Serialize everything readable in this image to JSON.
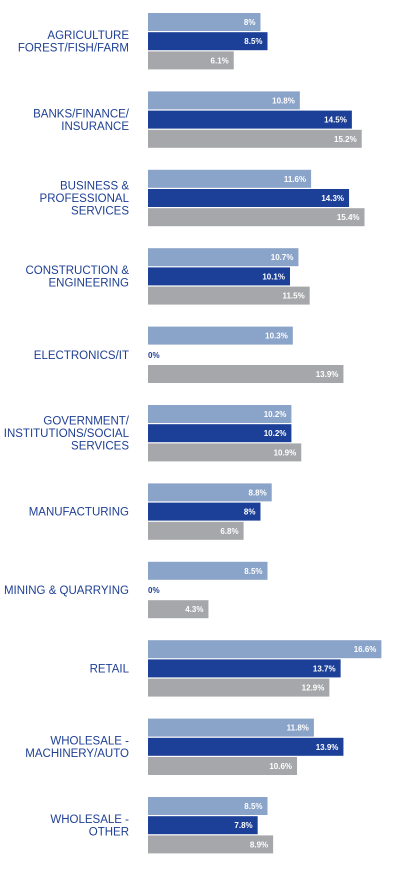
{
  "chart_data": {
    "type": "bar",
    "orientation": "horizontal",
    "grid": false,
    "legend": "none",
    "colors": [
      "#8aa3c8",
      "#1c3f97",
      "#a6a7aa"
    ],
    "categories": [
      [
        "AGRICULTURE",
        "FOREST/FISH/FARM"
      ],
      [
        "BANKS/FINANCE/",
        "INSURANCE"
      ],
      [
        "BUSINESS &",
        "PROFESSIONAL",
        "SERVICES"
      ],
      [
        "CONSTRUCTION &",
        "ENGINEERING"
      ],
      [
        "ELECTRONICS/IT"
      ],
      [
        "GOVERNMENT/",
        "INSTITUTIONS/SOCIAL",
        "SERVICES"
      ],
      [
        "MANUFACTURING"
      ],
      [
        "MINING & QUARRYING"
      ],
      [
        "RETAIL"
      ],
      [
        "WHOLESALE -",
        "MACHINERY/AUTO"
      ],
      [
        "WHOLESALE -",
        "OTHER"
      ]
    ],
    "series": [
      {
        "values": [
          8,
          10.8,
          11.6,
          10.7,
          10.3,
          10.2,
          8.8,
          8.5,
          16.6,
          11.8,
          8.5
        ],
        "labels": [
          "8%",
          "10.8%",
          "11.6%",
          "10.7%",
          "10.3%",
          "10.2%",
          "8.8%",
          "8.5%",
          "16.6%",
          "11.8%",
          "8.5%"
        ]
      },
      {
        "values": [
          8.5,
          14.5,
          14.3,
          10.1,
          0,
          10.2,
          8,
          0,
          13.7,
          13.9,
          7.8
        ],
        "labels": [
          "8.5%",
          "14.5%",
          "14.3%",
          "10.1%",
          "0%",
          "10.2%",
          "8%",
          "0%",
          "13.7%",
          "13.9%",
          "7.8%"
        ]
      },
      {
        "values": [
          6.1,
          15.2,
          15.4,
          11.5,
          13.9,
          10.9,
          6.8,
          4.3,
          12.9,
          10.6,
          8.9
        ],
        "labels": [
          "6.1%",
          "15.2%",
          "15.4%",
          "11.5%",
          "13.9%",
          "10.9%",
          "6.8%",
          "4.3%",
          "12.9%",
          "10.6%",
          "8.9%"
        ]
      }
    ],
    "xlim": [
      0,
      17
    ]
  }
}
